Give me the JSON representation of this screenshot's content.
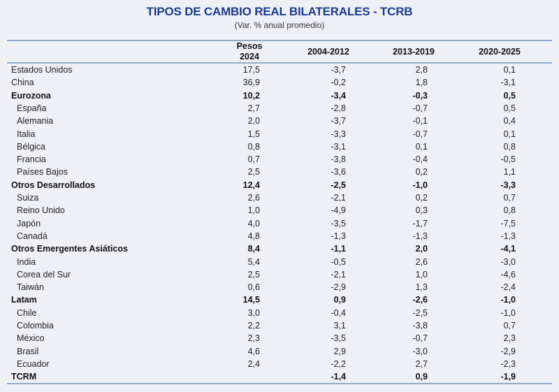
{
  "title": "TIPOS DE CAMBIO REAL BILATERALES - TCRB",
  "subtitle": "(Var. % anual promedio)",
  "headers": {
    "pesos_line1": "Pesos",
    "pesos_line2": "2024",
    "p1": "2004-2012",
    "p2": "2013-2019",
    "p3": "2020-2025"
  },
  "rows": [
    {
      "label": "Estados Unidos",
      "type": "top",
      "values": [
        "17,5",
        "-3,7",
        "2,8",
        "0,1"
      ]
    },
    {
      "label": "China",
      "type": "top",
      "values": [
        "36,9",
        "-0,2",
        "1,8",
        "-3,1"
      ]
    },
    {
      "label": "Eurozona",
      "type": "grp",
      "values": [
        "10,2",
        "-3,4",
        "-0,3",
        "0,5"
      ]
    },
    {
      "label": "España",
      "type": "sub",
      "values": [
        "2,7",
        "-2,8",
        "-0,7",
        "0,5"
      ]
    },
    {
      "label": "Alemania",
      "type": "sub",
      "values": [
        "2,0",
        "-3,7",
        "-0,1",
        "0,4"
      ]
    },
    {
      "label": "Italia",
      "type": "sub",
      "values": [
        "1,5",
        "-3,3",
        "-0,7",
        "0,1"
      ]
    },
    {
      "label": "Bélgica",
      "type": "sub",
      "values": [
        "0,8",
        "-3,1",
        "0,1",
        "0,8"
      ]
    },
    {
      "label": "Francia",
      "type": "sub",
      "values": [
        "0,7",
        "-3,8",
        "-0,4",
        "-0,5"
      ]
    },
    {
      "label": "Países Bajos",
      "type": "sub",
      "values": [
        "2,5",
        "-3,6",
        "0,2",
        "1,1"
      ]
    },
    {
      "label": "Otros Desarrollados",
      "type": "grp",
      "values": [
        "12,4",
        "-2,5",
        "-1,0",
        "-3,3"
      ]
    },
    {
      "label": "Suiza",
      "type": "sub",
      "values": [
        "2,6",
        "-2,1",
        "0,2",
        "0,7"
      ]
    },
    {
      "label": "Reino Unido",
      "type": "sub",
      "values": [
        "1,0",
        "-4,9",
        "0,3",
        "0,8"
      ]
    },
    {
      "label": "Japón",
      "type": "sub",
      "values": [
        "4,0",
        "-3,5",
        "-1,7",
        "-7,5"
      ]
    },
    {
      "label": "Canadá",
      "type": "sub",
      "values": [
        "4,8",
        "-1,3",
        "-1,3",
        "-1,3"
      ]
    },
    {
      "label": "Otros Emergentes Asiáticos",
      "type": "grp",
      "values": [
        "8,4",
        "-1,1",
        "2,0",
        "-4,1"
      ]
    },
    {
      "label": "India",
      "type": "sub",
      "values": [
        "5,4",
        "-0,5",
        "2,6",
        "-3,0"
      ]
    },
    {
      "label": "Corea del Sur",
      "type": "sub",
      "values": [
        "2,5",
        "-2,1",
        "1,0",
        "-4,6"
      ]
    },
    {
      "label": "Taiwán",
      "type": "sub",
      "values": [
        "0,6",
        "-2,9",
        "1,3",
        "-2,4"
      ]
    },
    {
      "label": "Latam",
      "type": "grp",
      "values": [
        "14,5",
        "0,9",
        "-2,6",
        "-1,0"
      ]
    },
    {
      "label": "Chile",
      "type": "sub",
      "values": [
        "3,0",
        "-0,4",
        "-2,5",
        "-1,0"
      ]
    },
    {
      "label": "Colombia",
      "type": "sub",
      "values": [
        "2,2",
        "3,1",
        "-3,8",
        "0,7"
      ]
    },
    {
      "label": "México",
      "type": "sub",
      "values": [
        "2,3",
        "-3,5",
        "-0,7",
        "2,3"
      ]
    },
    {
      "label": "Brasil",
      "type": "sub",
      "values": [
        "4,6",
        "2,9",
        "-3,0",
        "-2,9"
      ]
    },
    {
      "label": "Ecuador",
      "type": "sub",
      "values": [
        "2,4",
        "-2,2",
        "2,7",
        "-2,3"
      ]
    },
    {
      "label": "TCRM",
      "type": "grp",
      "values": [
        "",
        "-1,4",
        "0,9",
        "-1,9"
      ]
    }
  ]
}
